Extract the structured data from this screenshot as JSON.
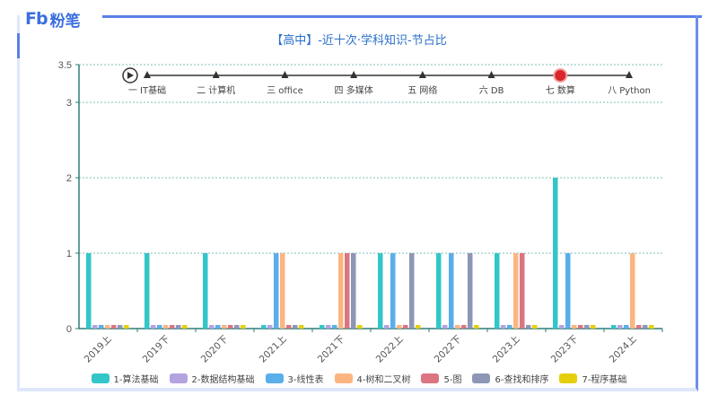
{
  "brand": {
    "mark": "Fb",
    "name": "粉笔"
  },
  "colors": {
    "brand": "#3b6fe0",
    "frame": "#6f8fe8",
    "axis": "#2e7d78",
    "title": "#2a6fc9"
  },
  "timeline": {
    "play_icon": "play-circle-icon",
    "items": [
      {
        "label": "一 IT基础",
        "active": false
      },
      {
        "label": "二 计算机",
        "active": false
      },
      {
        "label": "三 office",
        "active": false
      },
      {
        "label": "四 多媒体",
        "active": false
      },
      {
        "label": "五 网络",
        "active": false
      },
      {
        "label": "六 DB",
        "active": false
      },
      {
        "label": "七 数算",
        "active": true
      },
      {
        "label": "八 Python",
        "active": false
      }
    ]
  },
  "chart_data": {
    "type": "bar",
    "title": "【高中】-近十次·学科知识-节占比",
    "xlabel": "",
    "ylabel": "",
    "ylim": [
      0,
      3.5
    ],
    "yticks": [
      0,
      1,
      2,
      3,
      3.5
    ],
    "grid": true,
    "legend_position": "bottom",
    "categories": [
      "2019上",
      "2019下",
      "2020下",
      "2021上",
      "2021下",
      "2022上",
      "2022下",
      "2023上",
      "2023下",
      "2024上"
    ],
    "series": [
      {
        "name": "1-算法基础",
        "color": "#33c6c9",
        "values": [
          1,
          1,
          1,
          0,
          0,
          1,
          1,
          1,
          2,
          0
        ]
      },
      {
        "name": "2-数据结构基础",
        "color": "#b3a3e0",
        "values": [
          0,
          0,
          0,
          0,
          0,
          0,
          0,
          0,
          0,
          0
        ]
      },
      {
        "name": "3-线性表",
        "color": "#5aaeea",
        "values": [
          0,
          0,
          0,
          1,
          0,
          1,
          1,
          0,
          1,
          0
        ]
      },
      {
        "name": "4-树和二叉树",
        "color": "#fcb580",
        "values": [
          0,
          0,
          0,
          1,
          1,
          0,
          0,
          1,
          0,
          1
        ]
      },
      {
        "name": "5-图",
        "color": "#dc7481",
        "values": [
          0,
          0,
          0,
          0,
          1,
          0,
          0,
          1,
          0,
          0
        ]
      },
      {
        "name": "6-查找和排序",
        "color": "#8d97b5",
        "values": [
          0,
          0,
          0,
          0,
          1,
          1,
          1,
          0,
          0,
          0
        ]
      },
      {
        "name": "7-程序基础",
        "color": "#e5cf0d",
        "values": [
          0,
          0,
          0,
          0,
          0,
          0,
          0,
          0,
          0,
          0
        ]
      }
    ]
  }
}
